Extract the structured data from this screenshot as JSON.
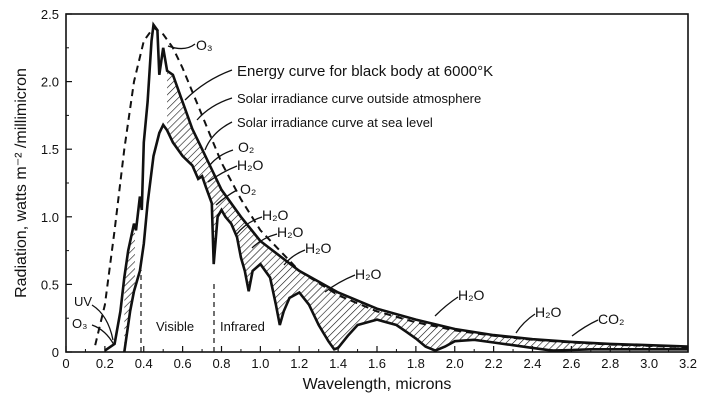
{
  "chart_data": {
    "type": "line",
    "xlabel": "Wavelength, microns",
    "ylabel": "Radiation, watts m⁻² /millimicron",
    "xlim": [
      0,
      3.2
    ],
    "ylim": [
      0,
      2.5
    ],
    "xticks": [
      "0",
      "0.2",
      "0.4",
      "0.6",
      "0.8",
      "1.0",
      "1.2",
      "1.4",
      "1.6",
      "1.8",
      "2.0",
      "2.2",
      "2.4",
      "2.6",
      "2.8",
      "3.0",
      "3.2"
    ],
    "yticks": [
      "0",
      "0.5",
      "1.0",
      "1.5",
      "2.0",
      "2.5"
    ],
    "series": [
      {
        "name": "Energy curve for black body at 6000°K",
        "style": "dashed",
        "x": [
          0.15,
          0.2,
          0.25,
          0.3,
          0.35,
          0.4,
          0.45,
          0.5,
          0.55,
          0.6,
          0.7,
          0.8,
          0.9,
          1.0,
          1.2,
          1.4,
          1.6,
          1.8,
          2.0,
          2.2,
          2.4,
          2.6,
          2.8,
          3.0,
          3.2
        ],
        "y": [
          0.05,
          0.35,
          0.9,
          1.5,
          2.0,
          2.3,
          2.4,
          2.35,
          2.25,
          2.1,
          1.75,
          1.4,
          1.13,
          0.9,
          0.6,
          0.42,
          0.3,
          0.22,
          0.16,
          0.12,
          0.09,
          0.07,
          0.055,
          0.045,
          0.035
        ]
      },
      {
        "name": "Solar irradiance curve outside atmosphere",
        "style": "solid",
        "x": [
          0.2,
          0.25,
          0.28,
          0.3,
          0.32,
          0.35,
          0.36,
          0.38,
          0.39,
          0.4,
          0.42,
          0.44,
          0.45,
          0.47,
          0.48,
          0.5,
          0.52,
          0.55,
          0.6,
          0.65,
          0.7,
          0.75,
          0.8,
          0.9,
          1.0,
          1.2,
          1.4,
          1.6,
          1.8,
          2.0,
          2.2,
          2.4,
          2.6,
          2.8,
          3.0,
          3.2
        ],
        "y": [
          0.01,
          0.06,
          0.3,
          0.55,
          0.75,
          0.95,
          0.9,
          1.15,
          1.05,
          1.55,
          1.85,
          2.3,
          2.42,
          2.38,
          2.05,
          2.25,
          2.08,
          2.05,
          1.85,
          1.65,
          1.5,
          1.35,
          1.2,
          1.0,
          0.82,
          0.6,
          0.44,
          0.32,
          0.24,
          0.17,
          0.125,
          0.095,
          0.075,
          0.06,
          0.05,
          0.04
        ]
      },
      {
        "name": "Solar irradiance curve at sea level",
        "style": "solid",
        "x": [
          0.3,
          0.33,
          0.35,
          0.38,
          0.4,
          0.42,
          0.45,
          0.48,
          0.5,
          0.52,
          0.55,
          0.6,
          0.65,
          0.68,
          0.7,
          0.72,
          0.75,
          0.76,
          0.78,
          0.8,
          0.82,
          0.85,
          0.88,
          0.9,
          0.92,
          0.94,
          0.96,
          1.0,
          1.05,
          1.08,
          1.1,
          1.12,
          1.15,
          1.2,
          1.25,
          1.3,
          1.35,
          1.38,
          1.4,
          1.45,
          1.5,
          1.6,
          1.7,
          1.75,
          1.8,
          1.85,
          1.9,
          1.95,
          2.0,
          2.1,
          2.2,
          2.3,
          2.4,
          2.5,
          2.6,
          2.7,
          2.8,
          3.0,
          3.2
        ],
        "y": [
          0.0,
          0.3,
          0.45,
          0.6,
          0.8,
          1.1,
          1.45,
          1.62,
          1.68,
          1.64,
          1.55,
          1.45,
          1.38,
          1.28,
          1.3,
          1.22,
          1.1,
          0.65,
          1.0,
          1.05,
          1.0,
          0.95,
          0.85,
          0.7,
          0.6,
          0.45,
          0.6,
          0.65,
          0.55,
          0.35,
          0.2,
          0.3,
          0.4,
          0.44,
          0.35,
          0.2,
          0.08,
          0.02,
          0.03,
          0.12,
          0.2,
          0.24,
          0.2,
          0.15,
          0.1,
          0.04,
          0.01,
          0.04,
          0.08,
          0.09,
          0.07,
          0.05,
          0.03,
          0.01,
          0.015,
          0.02,
          0.02,
          0.02,
          0.02
        ]
      }
    ],
    "annotations": {
      "o3_top": "O₃",
      "o2_a": "O₂",
      "o2_b": "O₂",
      "h2o_1": "H₂O",
      "h2o_2": "H₂O",
      "h2o_3": "H₂O",
      "h2o_4": "H₂O",
      "h2o_5": "H₂O",
      "h2o_6": "H₂O",
      "h2o_7": "H₂O",
      "co2": "CO₂",
      "uv": "UV",
      "o3_bottom": "O₃",
      "visible": "Visible",
      "infrared": "Infrared"
    }
  }
}
